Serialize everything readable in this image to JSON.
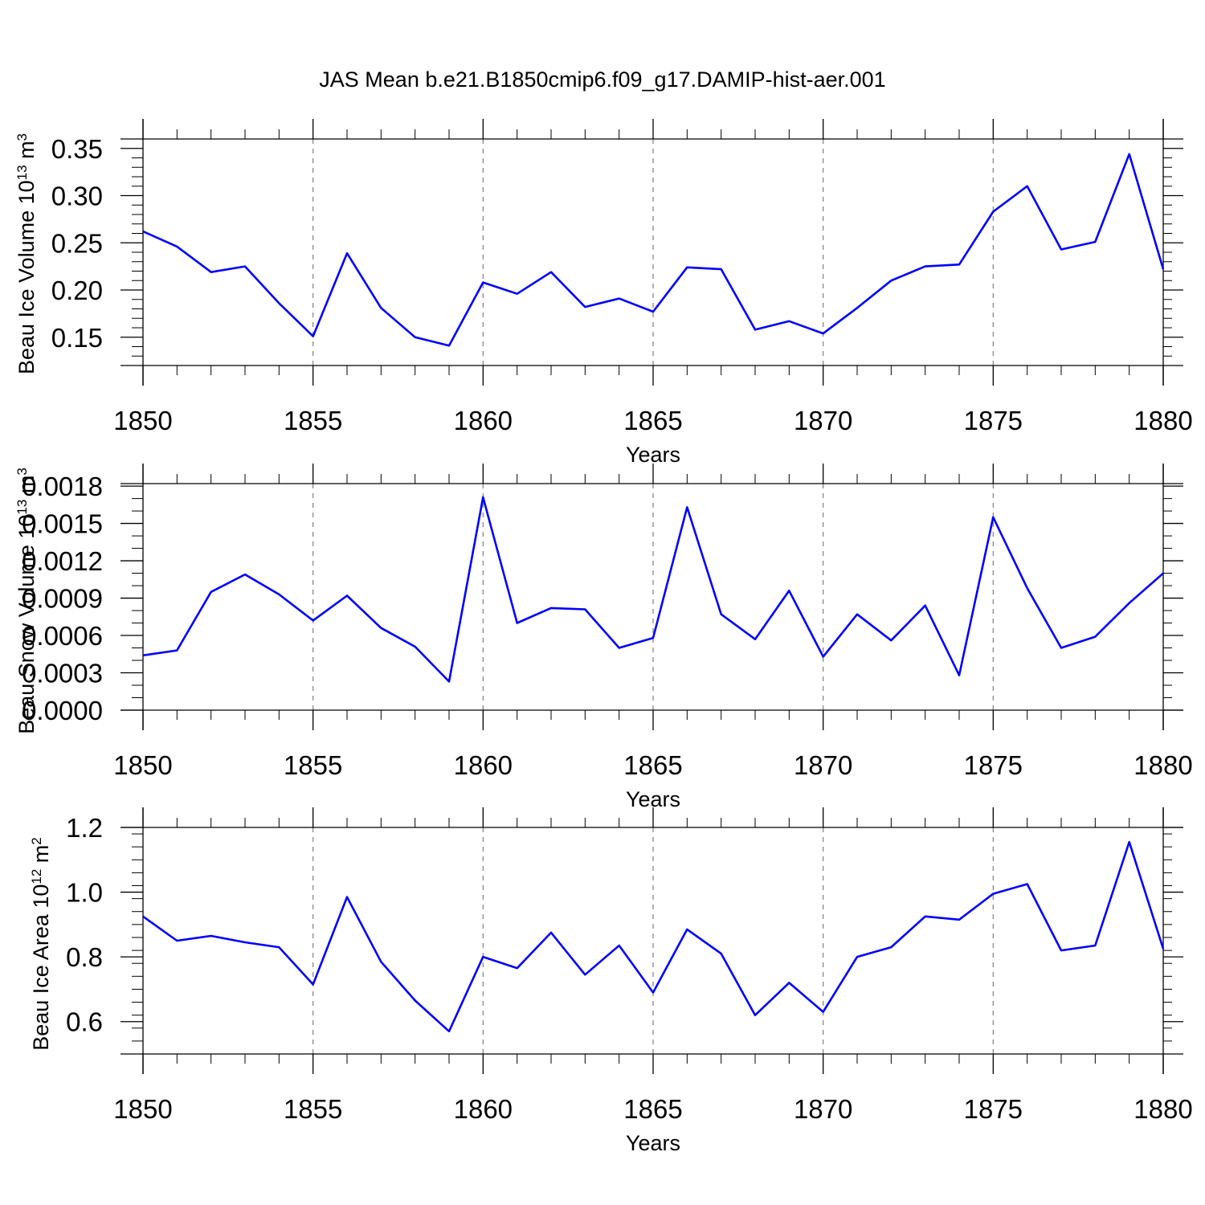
{
  "title": "JAS Mean b.e21.B1850cmip6.f09_g17.DAMIP-hist-aer.001",
  "colors": {
    "line": "#0000ff",
    "axis": "#000000",
    "grid": "#808080"
  },
  "chart_data": [
    {
      "type": "line",
      "xlabel": "Years",
      "ylabel": {
        "prefix": "Beau Ice Volume 10",
        "exp1": "13",
        "mid": " m",
        "exp2": "3"
      },
      "xlim": [
        1850,
        1880
      ],
      "ylim": [
        0.12,
        0.36
      ],
      "xticks": [
        1850,
        1855,
        1860,
        1865,
        1870,
        1875,
        1880
      ],
      "xtick_labels": [
        "1850",
        "1855",
        "1860",
        "1865",
        "1870",
        "1875",
        "1880"
      ],
      "yticks": [
        0.15,
        0.2,
        0.25,
        0.3,
        0.35
      ],
      "ytick_labels": [
        "0.15",
        "0.20",
        "0.25",
        "0.30",
        "0.35"
      ],
      "yminor_step": 0.01,
      "grid": "dashed vertical at major x ticks",
      "x": [
        1850,
        1851,
        1852,
        1853,
        1854,
        1855,
        1856,
        1857,
        1858,
        1859,
        1860,
        1861,
        1862,
        1863,
        1864,
        1865,
        1866,
        1867,
        1868,
        1869,
        1870,
        1871,
        1872,
        1873,
        1874,
        1875,
        1876,
        1877,
        1878,
        1879,
        1880
      ],
      "y": [
        0.262,
        0.246,
        0.219,
        0.225,
        0.186,
        0.151,
        0.239,
        0.181,
        0.15,
        0.141,
        0.208,
        0.196,
        0.219,
        0.182,
        0.191,
        0.177,
        0.224,
        0.222,
        0.158,
        0.167,
        0.154,
        0.181,
        0.21,
        0.225,
        0.227,
        0.283,
        0.31,
        0.243,
        0.251,
        0.344,
        0.222
      ]
    },
    {
      "type": "line",
      "xlabel": "Years",
      "ylabel": {
        "prefix": "Beau Snow Volume 10",
        "exp1": "13",
        "mid": " m",
        "exp2": "3"
      },
      "xlim": [
        1850,
        1880
      ],
      "ylim": [
        0,
        0.00182
      ],
      "xticks": [
        1850,
        1855,
        1860,
        1865,
        1870,
        1875,
        1880
      ],
      "xtick_labels": [
        "1850",
        "1855",
        "1860",
        "1865",
        "1870",
        "1875",
        "1880"
      ],
      "yticks": [
        0,
        0.0003,
        0.0006,
        0.0009,
        0.0012,
        0.0015,
        0.0018
      ],
      "ytick_labels": [
        "0.0000",
        "0.0003",
        "0.0006",
        "0.0009",
        "0.0012",
        "0.0015",
        "0.0018"
      ],
      "yminor_step": 0.0001,
      "grid": "dashed vertical at major x ticks",
      "x": [
        1850,
        1851,
        1852,
        1853,
        1854,
        1855,
        1856,
        1857,
        1858,
        1859,
        1860,
        1861,
        1862,
        1863,
        1864,
        1865,
        1866,
        1867,
        1868,
        1869,
        1870,
        1871,
        1872,
        1873,
        1874,
        1875,
        1876,
        1877,
        1878,
        1879,
        1880
      ],
      "y": [
        0.00044,
        0.00048,
        0.00095,
        0.00109,
        0.00093,
        0.00072,
        0.00092,
        0.00066,
        0.00051,
        0.00023,
        0.00171,
        0.0007,
        0.00082,
        0.00081,
        0.0005,
        0.00058,
        0.00163,
        0.00077,
        0.00057,
        0.00096,
        0.00043,
        0.00077,
        0.00056,
        0.00084,
        0.00028,
        0.00155,
        0.00098,
        0.0005,
        0.00059,
        0.00086,
        0.0011
      ]
    },
    {
      "type": "line",
      "xlabel": "Years",
      "ylabel": {
        "prefix": "Beau Ice Area 10",
        "exp1": "12",
        "mid": " m",
        "exp2": "2"
      },
      "xlim": [
        1850,
        1880
      ],
      "ylim": [
        0.5,
        1.2
      ],
      "xticks": [
        1850,
        1855,
        1860,
        1865,
        1870,
        1875,
        1880
      ],
      "xtick_labels": [
        "1850",
        "1855",
        "1860",
        "1865",
        "1870",
        "1875",
        "1880"
      ],
      "yticks": [
        0.6,
        0.8,
        1.0,
        1.2
      ],
      "ytick_labels": [
        "0.6",
        "0.8",
        "1.0",
        "1.2"
      ],
      "yminor_step": 0.04,
      "grid": "dashed vertical at major x ticks",
      "x": [
        1850,
        1851,
        1852,
        1853,
        1854,
        1855,
        1856,
        1857,
        1858,
        1859,
        1860,
        1861,
        1862,
        1863,
        1864,
        1865,
        1866,
        1867,
        1868,
        1869,
        1870,
        1871,
        1872,
        1873,
        1874,
        1875,
        1876,
        1877,
        1878,
        1879,
        1880
      ],
      "y": [
        0.925,
        0.85,
        0.865,
        0.845,
        0.83,
        0.715,
        0.985,
        0.785,
        0.665,
        0.57,
        0.8,
        0.765,
        0.875,
        0.745,
        0.835,
        0.69,
        0.885,
        0.81,
        0.62,
        0.72,
        0.63,
        0.8,
        0.83,
        0.925,
        0.915,
        0.995,
        1.025,
        0.82,
        0.835,
        1.155,
        0.825
      ]
    }
  ]
}
